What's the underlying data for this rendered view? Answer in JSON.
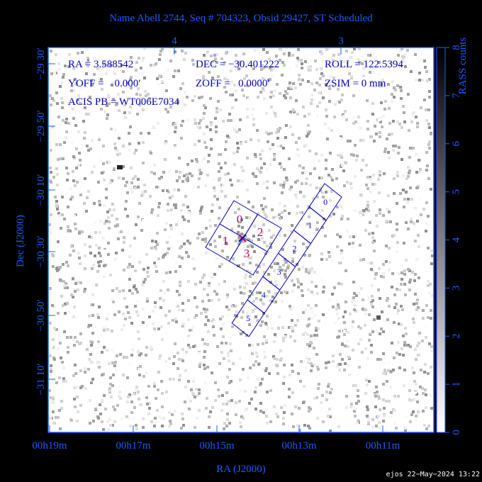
{
  "title": "Name Abell 2744, Seq # 704323, Obsid 29427, ST Scheduled",
  "info": {
    "ra": "RA = 3.588542",
    "dec": "DEC = −30.401222",
    "roll": "ROLL = 122.5394",
    "yoff": "YOFF =    0.000′",
    "zoff": "ZOFF =   0.0000′",
    "zsim": "ZSIM = 0 mm",
    "acis": "ACIS PB = WT006E7034"
  },
  "x_axis": {
    "label": "RA (J2000)",
    "ticks": [
      "00h19m",
      "00h17m",
      "00h15m",
      "00h13m",
      "00h11m"
    ],
    "top_ticks": [
      "4",
      "3"
    ]
  },
  "y_axis": {
    "label": "Dec (J2000)",
    "ticks": [
      "−29 30′",
      "−29 50′",
      "−30 10′",
      "−30 30′",
      "−30 50′",
      "−31 10′"
    ]
  },
  "acis_i_chips": [
    "0",
    "1",
    "2",
    "3"
  ],
  "acis_s_chips": [
    "0",
    "1",
    "2",
    "3",
    "4",
    "5"
  ],
  "colorbar": {
    "label": "RASS counts",
    "ticks": [
      0,
      1,
      2,
      3,
      4,
      5,
      6,
      7,
      8
    ]
  },
  "footer": "ejos 22−May−2024 13:22"
}
